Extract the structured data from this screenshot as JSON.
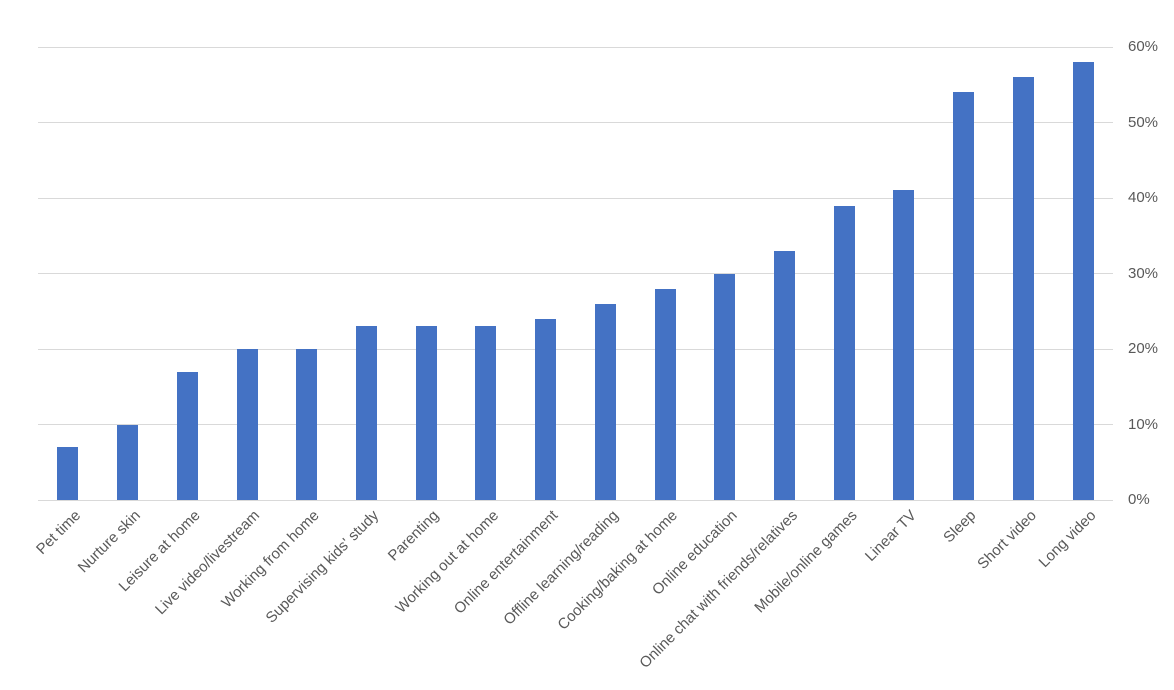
{
  "chart_data": {
    "type": "bar",
    "title": "",
    "xlabel": "",
    "ylabel": "",
    "unit": "%",
    "categories": [
      "Pet time",
      "Nurture skin",
      "Leisure at home",
      "Live video/livestream",
      "Working from home",
      "Supervising kids' study",
      "Parenting",
      "Working out at home",
      "Online entertainment",
      "Offline learning/reading",
      "Cooking/baking at home",
      "Online education",
      "Online chat with friends/relatives",
      "Mobile/online games",
      "Linear TV",
      "Sleep",
      "Short video",
      "Long video"
    ],
    "values": [
      7,
      10,
      17,
      20,
      20,
      23,
      23,
      23,
      24,
      26,
      28,
      30,
      33,
      39,
      41,
      54,
      56,
      58
    ],
    "ylim": [
      0,
      60
    ],
    "ytick_step": 10,
    "ytick_labels": [
      "0%",
      "10%",
      "20%",
      "30%",
      "40%",
      "50%",
      "60%"
    ],
    "yaxis_side": "right",
    "xlabel_rotation_deg": 45,
    "grid": true,
    "legend": false,
    "colors": {
      "bar": "#4472C4",
      "gridline": "#D9D9D9",
      "axis_text": "#595959",
      "background": "#FFFFFF"
    }
  }
}
